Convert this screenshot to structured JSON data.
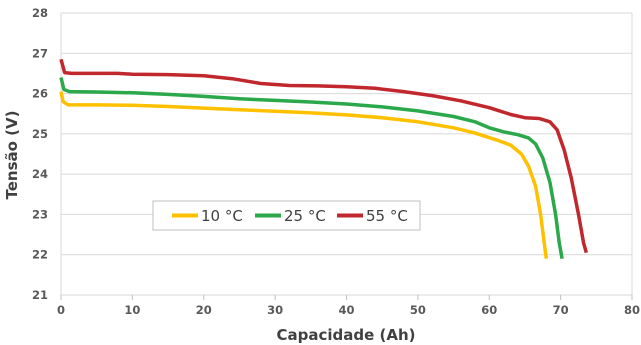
{
  "chart_data": {
    "type": "line",
    "xlabel": "Capacidade (Ah)",
    "ylabel": "Tensão (V)",
    "xlim": [
      0,
      80
    ],
    "ylim": [
      21,
      28
    ],
    "x_ticks": [
      "0",
      "10",
      "20",
      "30",
      "40",
      "50",
      "60",
      "70",
      "80"
    ],
    "y_ticks": [
      "21",
      "22",
      "23",
      "24",
      "25",
      "26",
      "27",
      "28"
    ],
    "grid": "horizontal",
    "legend_position": "bottom-left",
    "series": [
      {
        "name": "10 °C",
        "color": "#FFC000",
        "points": [
          [
            0,
            26.05
          ],
          [
            0.3,
            25.8
          ],
          [
            1,
            25.72
          ],
          [
            5,
            25.72
          ],
          [
            10,
            25.71
          ],
          [
            15,
            25.68
          ],
          [
            20,
            25.64
          ],
          [
            25,
            25.6
          ],
          [
            30,
            25.56
          ],
          [
            35,
            25.52
          ],
          [
            40,
            25.47
          ],
          [
            45,
            25.4
          ],
          [
            50,
            25.3
          ],
          [
            55,
            25.15
          ],
          [
            58,
            25.02
          ],
          [
            61,
            24.85
          ],
          [
            63,
            24.72
          ],
          [
            64.5,
            24.5
          ],
          [
            65.5,
            24.2
          ],
          [
            66.5,
            23.7
          ],
          [
            67.2,
            23.0
          ],
          [
            67.7,
            22.3
          ],
          [
            68,
            21.9
          ]
        ]
      },
      {
        "name": "25 °C",
        "color": "#2AA84A",
        "points": [
          [
            0,
            26.4
          ],
          [
            0.4,
            26.1
          ],
          [
            1.2,
            26.05
          ],
          [
            5,
            26.04
          ],
          [
            10,
            26.02
          ],
          [
            15,
            25.98
          ],
          [
            20,
            25.93
          ],
          [
            25,
            25.87
          ],
          [
            30,
            25.83
          ],
          [
            35,
            25.79
          ],
          [
            40,
            25.74
          ],
          [
            45,
            25.67
          ],
          [
            50,
            25.57
          ],
          [
            55,
            25.43
          ],
          [
            58,
            25.3
          ],
          [
            60,
            25.15
          ],
          [
            62,
            25.05
          ],
          [
            64,
            24.98
          ],
          [
            65.5,
            24.9
          ],
          [
            66.5,
            24.75
          ],
          [
            67.5,
            24.4
          ],
          [
            68.5,
            23.8
          ],
          [
            69.3,
            23.0
          ],
          [
            69.8,
            22.3
          ],
          [
            70.2,
            21.9
          ]
        ]
      },
      {
        "name": "55 °C",
        "color": "#C0282D",
        "points": [
          [
            0,
            26.85
          ],
          [
            0.5,
            26.52
          ],
          [
            1.5,
            26.5
          ],
          [
            5,
            26.5
          ],
          [
            8,
            26.5
          ],
          [
            10,
            26.48
          ],
          [
            15,
            26.47
          ],
          [
            20,
            26.44
          ],
          [
            24,
            26.37
          ],
          [
            28,
            26.25
          ],
          [
            32,
            26.2
          ],
          [
            36,
            26.19
          ],
          [
            40,
            26.17
          ],
          [
            44,
            26.13
          ],
          [
            48,
            26.05
          ],
          [
            52,
            25.95
          ],
          [
            56,
            25.82
          ],
          [
            60,
            25.65
          ],
          [
            63,
            25.48
          ],
          [
            65,
            25.4
          ],
          [
            67,
            25.38
          ],
          [
            68.5,
            25.3
          ],
          [
            69.5,
            25.1
          ],
          [
            70.5,
            24.6
          ],
          [
            71.5,
            23.9
          ],
          [
            72.5,
            23.0
          ],
          [
            73.2,
            22.3
          ],
          [
            73.6,
            22.05
          ]
        ]
      }
    ]
  }
}
